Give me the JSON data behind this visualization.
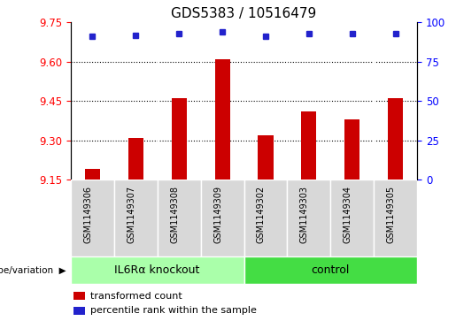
{
  "title": "GDS5383 / 10516479",
  "samples": [
    "GSM1149306",
    "GSM1149307",
    "GSM1149308",
    "GSM1149309",
    "GSM1149302",
    "GSM1149303",
    "GSM1149304",
    "GSM1149305"
  ],
  "bar_values": [
    9.19,
    9.31,
    9.46,
    9.61,
    9.32,
    9.41,
    9.38,
    9.46
  ],
  "percentile_values": [
    91,
    92,
    93,
    94,
    91,
    93,
    93,
    93
  ],
  "ylim_left": [
    9.15,
    9.75
  ],
  "ylim_right": [
    0,
    100
  ],
  "yticks_left": [
    9.15,
    9.3,
    9.45,
    9.6,
    9.75
  ],
  "yticks_right": [
    0,
    25,
    50,
    75,
    100
  ],
  "bar_color": "#cc0000",
  "dot_color": "#2222cc",
  "groups": [
    {
      "label": "IL6Rα knockout",
      "start": 0,
      "end": 4,
      "color": "#aaffaa"
    },
    {
      "label": "control",
      "start": 4,
      "end": 8,
      "color": "#44dd44"
    }
  ],
  "group_label_prefix": "genotype/variation",
  "legend_bar_label": "transformed count",
  "legend_dot_label": "percentile rank within the sample",
  "cell_bg": "#d8d8d8",
  "plot_bg": "#ffffff",
  "title_fontsize": 11,
  "tick_fontsize": 8.5,
  "sample_fontsize": 7,
  "group_fontsize": 9,
  "legend_fontsize": 8
}
